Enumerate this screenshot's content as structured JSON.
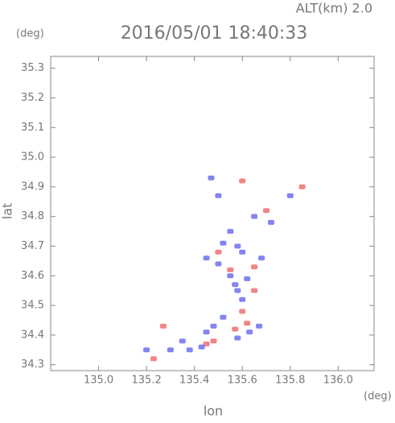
{
  "chart_data": {
    "type": "scatter",
    "title": "2016/05/01 18:40:33",
    "annotation": "ALT(km) 2.0",
    "y_unit": "(deg)",
    "x_unit": "(deg)",
    "x_label": "lon",
    "y_label": "lat",
    "xlim": [
      134.8,
      136.15
    ],
    "ylim": [
      34.28,
      35.34
    ],
    "xticks": [
      {
        "value": 135.0,
        "label": "135.0"
      },
      135.2,
      135.4,
      135.6,
      135.8,
      {
        "value": 136.0,
        "label": "136.0"
      }
    ],
    "yticks": [
      34.3,
      34.4,
      34.5,
      34.6,
      34.7,
      34.8,
      34.9,
      {
        "value": 35.0,
        "label": "35.0"
      },
      35.1,
      35.2,
      35.3
    ],
    "series": [
      {
        "color": "#ee6e6e",
        "x": [
          135.27,
          135.45,
          135.48,
          135.6,
          135.62,
          135.65,
          135.55,
          135.57,
          135.7,
          135.85,
          135.6,
          135.23,
          135.5,
          135.65
        ],
        "y": [
          34.43,
          34.37,
          34.38,
          34.48,
          34.44,
          34.63,
          34.62,
          34.42,
          34.82,
          34.9,
          34.92,
          34.32,
          34.68,
          34.55
        ]
      },
      {
        "color": "#6e6eee",
        "x": [
          135.3,
          135.38,
          135.43,
          135.35,
          135.45,
          135.52,
          135.48,
          135.58,
          135.63,
          135.67,
          135.6,
          135.58,
          135.55,
          135.5,
          135.45,
          135.52,
          135.6,
          135.62,
          135.57,
          135.68,
          135.72,
          135.8,
          135.5,
          135.47,
          135.65,
          135.55,
          135.58,
          135.2
        ],
        "y": [
          34.35,
          34.35,
          34.36,
          34.38,
          34.41,
          34.46,
          34.43,
          34.39,
          34.41,
          34.43,
          34.52,
          34.55,
          34.6,
          34.64,
          34.66,
          34.71,
          34.68,
          34.59,
          34.57,
          34.66,
          34.78,
          34.87,
          34.87,
          34.93,
          34.8,
          34.75,
          34.7,
          34.35
        ]
      }
    ]
  }
}
